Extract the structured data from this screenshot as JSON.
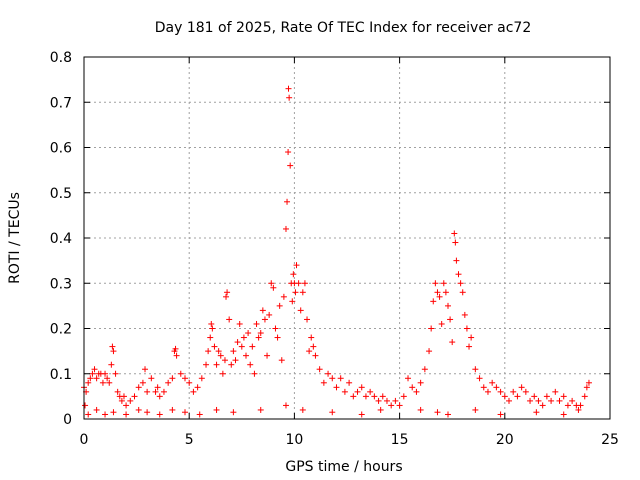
{
  "chart_data": {
    "type": "scatter",
    "title": "Day 181 of 2025, Rate Of TEC Index for receiver ac72",
    "xlabel": "GPS time / hours",
    "ylabel": "ROTI / TECUs",
    "xlim": [
      0,
      25
    ],
    "ylim": [
      0,
      0.8
    ],
    "xticks": [
      "0",
      "5",
      "10",
      "15",
      "20",
      "25"
    ],
    "yticks": [
      "0",
      "0.1",
      "0.2",
      "0.3",
      "0.4",
      "0.5",
      "0.6",
      "0.7",
      "0.8"
    ],
    "grid": true,
    "marker": "+",
    "color": "#ff0000",
    "series": [
      {
        "x": [
          0.0,
          0.05,
          0.1,
          0.2,
          0.3,
          0.4,
          0.5,
          0.6,
          0.7,
          0.8,
          0.9,
          1.0,
          1.1,
          1.2,
          1.3,
          1.35,
          1.4,
          1.5,
          1.6,
          1.7,
          1.8,
          1.9,
          2.0,
          2.2,
          2.4,
          2.6,
          2.8,
          2.9,
          3.0,
          3.2,
          3.4,
          3.5,
          3.6,
          3.8,
          4.0,
          4.2,
          4.3,
          4.35,
          4.4,
          4.6,
          4.8,
          5.0,
          5.2,
          5.4,
          5.6,
          5.8,
          5.9,
          6.0,
          6.05,
          6.1,
          6.2,
          6.3,
          6.4,
          6.5,
          6.6,
          6.7,
          6.75,
          6.8,
          6.9,
          7.0,
          7.1,
          7.2,
          7.3,
          7.4,
          7.5,
          7.6,
          7.7,
          7.8,
          7.9,
          8.0,
          8.1,
          8.2,
          8.3,
          8.4,
          8.5,
          8.6,
          8.7,
          8.8,
          8.9,
          9.0,
          9.1,
          9.2,
          9.3,
          9.4,
          9.5,
          9.6,
          9.65,
          9.7,
          9.72,
          9.75,
          9.8,
          9.85,
          9.9,
          9.95,
          10.0,
          10.05,
          10.1,
          10.2,
          10.3,
          10.4,
          10.5,
          10.6,
          10.7,
          10.8,
          10.9,
          11.0,
          11.2,
          11.4,
          11.6,
          11.8,
          12.0,
          12.2,
          12.4,
          12.6,
          12.8,
          13.0,
          13.2,
          13.4,
          13.6,
          13.8,
          14.0,
          14.2,
          14.4,
          14.6,
          14.8,
          15.0,
          15.2,
          15.4,
          15.6,
          15.8,
          16.0,
          16.2,
          16.4,
          16.5,
          16.6,
          16.7,
          16.8,
          16.9,
          17.0,
          17.1,
          17.2,
          17.3,
          17.4,
          17.5,
          17.6,
          17.65,
          17.7,
          17.8,
          17.9,
          18.0,
          18.1,
          18.2,
          18.3,
          18.4,
          18.6,
          18.8,
          19.0,
          19.2,
          19.4,
          19.6,
          19.8,
          20.0,
          20.2,
          20.4,
          20.6,
          20.8,
          21.0,
          21.2,
          21.4,
          21.6,
          21.8,
          22.0,
          22.2,
          22.4,
          22.6,
          22.8,
          23.0,
          23.2,
          23.4,
          23.6,
          23.8,
          23.9,
          24.0,
          0.2,
          0.6,
          1.0,
          1.4,
          2.0,
          2.6,
          3.0,
          3.6,
          4.2,
          4.8,
          5.5,
          6.3,
          7.1,
          8.4,
          9.6,
          10.4,
          11.8,
          13.2,
          14.1,
          16.0,
          16.8,
          17.3,
          18.6,
          19.8,
          21.5,
          22.8,
          23.5
        ],
        "y": [
          0.07,
          0.03,
          0.06,
          0.08,
          0.09,
          0.1,
          0.11,
          0.09,
          0.1,
          0.1,
          0.08,
          0.1,
          0.09,
          0.08,
          0.12,
          0.16,
          0.15,
          0.1,
          0.06,
          0.05,
          0.04,
          0.05,
          0.03,
          0.04,
          0.05,
          0.07,
          0.08,
          0.11,
          0.06,
          0.09,
          0.06,
          0.07,
          0.05,
          0.06,
          0.08,
          0.09,
          0.15,
          0.155,
          0.14,
          0.1,
          0.09,
          0.08,
          0.06,
          0.07,
          0.09,
          0.12,
          0.15,
          0.18,
          0.21,
          0.2,
          0.16,
          0.12,
          0.15,
          0.14,
          0.1,
          0.13,
          0.27,
          0.28,
          0.22,
          0.12,
          0.15,
          0.13,
          0.17,
          0.21,
          0.16,
          0.18,
          0.14,
          0.19,
          0.12,
          0.16,
          0.1,
          0.21,
          0.18,
          0.19,
          0.24,
          0.22,
          0.14,
          0.23,
          0.3,
          0.29,
          0.2,
          0.18,
          0.25,
          0.13,
          0.27,
          0.42,
          0.48,
          0.59,
          0.73,
          0.71,
          0.56,
          0.3,
          0.26,
          0.32,
          0.3,
          0.28,
          0.34,
          0.3,
          0.24,
          0.28,
          0.3,
          0.22,
          0.15,
          0.18,
          0.16,
          0.14,
          0.11,
          0.08,
          0.1,
          0.09,
          0.07,
          0.09,
          0.06,
          0.08,
          0.05,
          0.06,
          0.07,
          0.05,
          0.06,
          0.05,
          0.04,
          0.05,
          0.04,
          0.03,
          0.04,
          0.03,
          0.05,
          0.09,
          0.07,
          0.06,
          0.08,
          0.11,
          0.15,
          0.2,
          0.26,
          0.3,
          0.28,
          0.27,
          0.21,
          0.3,
          0.28,
          0.25,
          0.22,
          0.17,
          0.41,
          0.39,
          0.35,
          0.32,
          0.3,
          0.28,
          0.23,
          0.2,
          0.16,
          0.18,
          0.11,
          0.09,
          0.07,
          0.06,
          0.08,
          0.07,
          0.06,
          0.05,
          0.04,
          0.06,
          0.05,
          0.07,
          0.06,
          0.04,
          0.05,
          0.04,
          0.03,
          0.05,
          0.04,
          0.06,
          0.04,
          0.05,
          0.03,
          0.04,
          0.03,
          0.03,
          0.05,
          0.07,
          0.08,
          0.01,
          0.02,
          0.01,
          0.015,
          0.01,
          0.02,
          0.015,
          0.01,
          0.02,
          0.015,
          0.01,
          0.02,
          0.015,
          0.02,
          0.03,
          0.02,
          0.015,
          0.01,
          0.02,
          0.02,
          0.015,
          0.01,
          0.02,
          0.01,
          0.015,
          0.01,
          0.02
        ]
      }
    ]
  }
}
